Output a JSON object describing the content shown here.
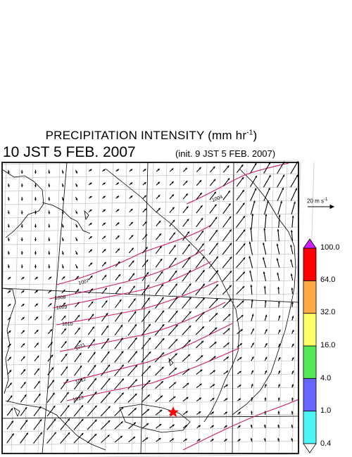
{
  "figure": {
    "title_main": "PRECIPITATION INTENSITY (mm hr",
    "title_exp": "-1",
    "title_close": ")",
    "valid_time": "10 JST 5 FEB. 2007",
    "init_time": "(init. 9 JST 5 FEB. 2007)"
  },
  "wind_reference": {
    "label_prefix": "20 m s",
    "label_exp": "-1"
  },
  "colorbar": {
    "levels": [
      "0.4",
      "1.0",
      "4.0",
      "16.0",
      "32.0",
      "64.0",
      "100.0"
    ],
    "colors": [
      "#4cf5f5",
      "#6666ff",
      "#55e855",
      "#ffff66",
      "#ffaa44",
      "#ff0000"
    ],
    "over_color": "#cc22ff"
  },
  "pressure_contours": {
    "labels": [
      "1004",
      "1007",
      "1008",
      "1009",
      "1010",
      "1011",
      "1012",
      "1013"
    ],
    "color": "#d01c6c"
  },
  "marker": {
    "symbol": "red-star",
    "color": "#ff0000"
  }
}
